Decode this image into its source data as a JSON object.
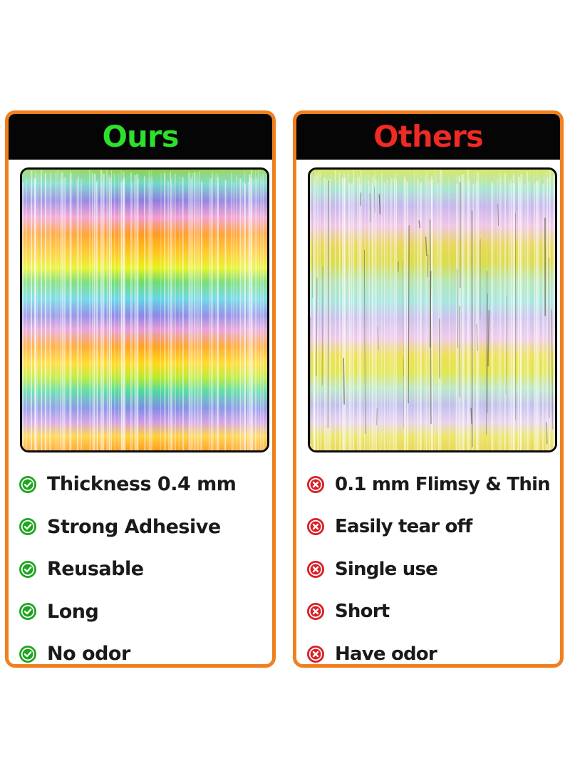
{
  "left_card": {
    "title": "Ours",
    "features": [
      {
        "text": "Thickness 0.4 mm",
        "icon": "check-circle-icon"
      },
      {
        "text": "Strong Adhesive",
        "icon": "check-circle-icon"
      },
      {
        "text": "Reusable",
        "icon": "check-circle-icon"
      },
      {
        "text": "Long",
        "icon": "check-circle-icon"
      },
      {
        "text": "No odor",
        "icon": "check-circle-icon"
      }
    ],
    "title_color": "#2ee02e",
    "icon_color": "#1fa51f"
  },
  "right_card": {
    "title": "Others",
    "features": [
      {
        "text": "0.1 mm Flimsy & Thin",
        "icon": "x-circle-icon"
      },
      {
        "text": "Easily tear off",
        "icon": "x-circle-icon"
      },
      {
        "text": "Single use",
        "icon": "x-circle-icon"
      },
      {
        "text": "Short",
        "icon": "x-circle-icon"
      },
      {
        "text": "Have odor",
        "icon": "x-circle-icon"
      }
    ],
    "title_color": "#ef2b23",
    "icon_color": "#d91f26"
  },
  "colors": {
    "card_border": "#f07f1f",
    "header_background": "#050505"
  }
}
